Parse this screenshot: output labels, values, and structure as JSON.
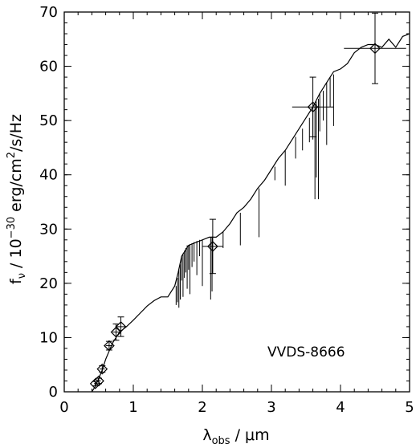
{
  "chart_data": {
    "type": "line",
    "title": "",
    "xlabel": {
      "main": "λ",
      "sub": "obs",
      "rest": " / μm"
    },
    "ylabel": {
      "pre": "f",
      "sub": "ν",
      "mid": " / 10",
      "sup1": "−30",
      "mid2": " erg/cm",
      "sup2": "2",
      "post": "/s/Hz"
    },
    "xlim": [
      0,
      5
    ],
    "ylim": [
      0,
      70
    ],
    "xticks": [
      0,
      1,
      2,
      3,
      4,
      5
    ],
    "xtick_labels": [
      "0",
      "1",
      "2",
      "3",
      "4",
      "5"
    ],
    "yticks": [
      0,
      10,
      20,
      30,
      40,
      50,
      60,
      70
    ],
    "ytick_labels": [
      "0",
      "10",
      "20",
      "30",
      "40",
      "50",
      "60",
      "70"
    ],
    "annotation": "VVDS-8666",
    "grid": false,
    "series": [
      {
        "type": "line",
        "x": [
          0.4,
          0.45,
          0.5,
          0.55,
          0.6,
          0.65,
          0.7,
          0.75,
          0.8,
          0.85,
          0.9,
          1.0,
          1.1,
          1.2,
          1.3,
          1.4,
          1.5,
          1.6,
          1.65,
          1.7,
          1.8,
          1.9,
          2.0,
          2.1,
          2.2,
          2.3,
          2.4,
          2.5,
          2.6,
          2.7,
          2.8,
          2.9,
          3.0,
          3.1,
          3.2,
          3.3,
          3.4,
          3.5,
          3.6,
          3.7,
          3.8,
          3.9,
          4.0,
          4.1,
          4.2,
          4.3,
          4.4,
          4.5,
          4.6,
          4.7,
          4.8,
          4.9,
          5.0
        ],
        "y": [
          0.0,
          1.0,
          2.5,
          4.0,
          6.0,
          7.5,
          9.0,
          10.0,
          11.0,
          11.5,
          12.0,
          13.2,
          14.5,
          15.8,
          16.8,
          17.5,
          17.5,
          19.5,
          22.0,
          25.0,
          27.0,
          27.5,
          28.0,
          28.5,
          28.5,
          29.5,
          31.0,
          33.0,
          34.0,
          35.5,
          37.5,
          39.0,
          41.0,
          43.0,
          44.5,
          46.5,
          48.5,
          50.5,
          52.5,
          55.0,
          57.0,
          59.0,
          59.5,
          60.5,
          62.5,
          63.5,
          64.0,
          64.0,
          63.5,
          65.0,
          63.5,
          65.5,
          66.0
        ]
      },
      {
        "type": "absorption_spikes",
        "x": [
          1.62,
          1.64,
          1.66,
          1.68,
          1.7,
          1.72,
          1.74,
          1.76,
          1.78,
          1.8,
          1.82,
          1.85,
          1.88,
          1.92,
          1.96,
          2.0,
          2.12,
          2.14,
          2.3,
          2.55,
          2.82,
          3.05,
          3.2,
          3.35,
          3.45,
          3.55,
          3.6,
          3.63,
          3.65,
          3.68,
          3.7,
          3.75,
          3.8,
          3.85,
          3.9
        ],
        "y_top": [
          19.5,
          21.0,
          22.5,
          23.5,
          25.0,
          25.5,
          26.0,
          26.5,
          27.0,
          27.0,
          27.2,
          27.4,
          27.6,
          27.8,
          28.0,
          28.0,
          28.5,
          28.6,
          29.5,
          33.0,
          37.5,
          41.5,
          44.5,
          47.0,
          48.5,
          50.5,
          52.5,
          53.0,
          53.5,
          54.0,
          55.0,
          55.5,
          57.0,
          58.0,
          58.5
        ],
        "y_bottom": [
          16.0,
          16.5,
          15.5,
          17.0,
          20.5,
          17.5,
          21.0,
          22.0,
          19.0,
          22.5,
          18.0,
          23.0,
          24.0,
          21.5,
          25.0,
          19.5,
          17.0,
          18.5,
          26.5,
          27.0,
          28.5,
          39.0,
          38.0,
          43.0,
          44.5,
          46.0,
          46.5,
          35.5,
          39.5,
          35.5,
          48.0,
          50.0,
          45.5,
          52.5,
          49.0
        ]
      },
      {
        "type": "photometry",
        "x": [
          0.45,
          0.5,
          0.55,
          0.65,
          0.75,
          0.82,
          2.15,
          3.6,
          4.5
        ],
        "y": [
          1.5,
          2.0,
          4.2,
          8.5,
          11.0,
          12.0,
          26.8,
          52.5,
          63.3
        ],
        "xerr": [
          0.02,
          0.03,
          0.04,
          0.05,
          0.05,
          0.08,
          0.15,
          0.3,
          0.45
        ],
        "yerr": [
          0.4,
          0.5,
          0.6,
          0.8,
          1.5,
          1.8,
          5.0,
          5.5,
          6.5
        ]
      }
    ]
  }
}
